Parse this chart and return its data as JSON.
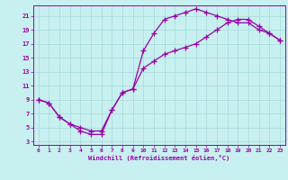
{
  "xlabel": "Windchill (Refroidissement éolien,°C)",
  "bg_color": "#c8f0f0",
  "line_color": "#9900aa",
  "grid_color": "#aadddd",
  "xlim": [
    -0.5,
    23.5
  ],
  "ylim": [
    2.5,
    22.5
  ],
  "xticks": [
    0,
    1,
    2,
    3,
    4,
    5,
    6,
    7,
    8,
    9,
    10,
    11,
    12,
    13,
    14,
    15,
    16,
    17,
    18,
    19,
    20,
    21,
    22,
    23
  ],
  "yticks": [
    3,
    5,
    7,
    9,
    11,
    13,
    15,
    17,
    19,
    21
  ],
  "curve1_x": [
    0,
    1,
    2,
    3,
    4,
    5,
    6,
    7,
    8,
    9,
    10,
    11,
    12,
    13,
    14,
    15,
    16,
    17,
    18,
    19,
    20,
    21,
    22,
    23
  ],
  "curve1_y": [
    9,
    8.5,
    6.5,
    5.5,
    4.5,
    4.0,
    4.0,
    7.5,
    10.0,
    10.5,
    13.5,
    14.5,
    15.5,
    16.0,
    16.5,
    17.0,
    18.0,
    19.0,
    20.0,
    20.5,
    20.5,
    19.5,
    18.5,
    17.5
  ],
  "curve2_x": [
    0,
    1,
    2,
    3,
    4,
    5,
    6,
    7,
    8,
    9,
    10,
    11,
    12,
    13,
    14,
    15,
    16,
    17,
    18,
    19,
    20,
    21,
    22,
    23
  ],
  "curve2_y": [
    9,
    8.5,
    6.5,
    5.5,
    5.0,
    4.5,
    4.5,
    7.5,
    10.0,
    10.5,
    16.0,
    18.5,
    20.5,
    21.0,
    21.5,
    22.0,
    21.5,
    21.0,
    20.5,
    20.0,
    20.0,
    19.0,
    18.5,
    17.5
  ],
  "marker": "+",
  "marker_size": 4,
  "line_width": 0.9
}
